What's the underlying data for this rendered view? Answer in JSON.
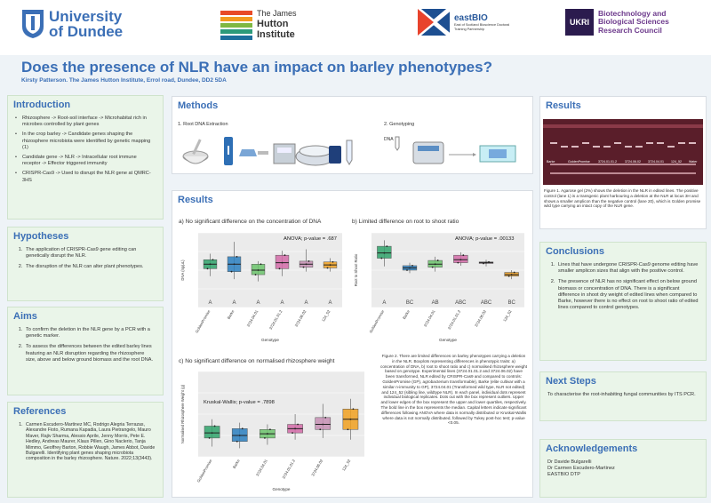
{
  "header": {
    "uod_logo": "University of Dundee",
    "uod_line1": "University",
    "uod_line2": "of Dundee",
    "hutton_line1": "The James",
    "hutton_line2": "Hutton",
    "hutton_line3": "Institute",
    "eastbio": "eastBIO",
    "eastbio_sub": "East of Scotland Bioscience Doctoral Training Partnership",
    "ukri": "UKRI",
    "bbsrc_line1": "Biotechnology and",
    "bbsrc_line2": "Biological Sciences",
    "bbsrc_line3": "Research Council"
  },
  "title": "Does the presence of NLR have an impact on barley phenotypes?",
  "subtitle": "Kirsty Patterson. The James Hutton Institute, Errol road, Dundee, DD2 5DA",
  "introduction": {
    "heading": "Introduction",
    "items": [
      "Rhizosphere -> Root-soil interface -> Microhabitat rich in microbes controlled by plant genes",
      "In the crop barley -> Candidate genes shaping the rhizosphere microbiota were identified by genetic mapping (1)",
      "Candidate gene -> NLR -> Intracellular root immune receptor -> Effector triggered immunity",
      "CRISPR-Cas9 -> Used to disrupt the NLR gene at QMRC-3HS"
    ]
  },
  "hypotheses": {
    "heading": "Hypotheses",
    "items": [
      "The application of CRISPR-Cas9 gene editing can genetically disrupt the NLR.",
      "The disruption of the NLR can alter plant phenotypes."
    ]
  },
  "aims": {
    "heading": "Aims",
    "items": [
      "To confirm the deletion in the NLR gene by a PCR with a genetic marker.",
      "To assess the differences between the edited barley lines featuring an NLR disruption regarding the rhizosphere size, above and below ground biomass and the root DNA."
    ]
  },
  "references": {
    "heading": "References",
    "items": [
      "Carmen Escudero-Martinez MC, Rodrigo Alegria Terrazas, Alexandre Fioto, Rumana Kapadia, Laura Pietrangelo, Mauro Maver, Rajiv Sharma, Alessio Aprile, Jenny Morris, Pete E. Hedley, Andreas Maurer, Klaus Pillen, Gino Naclerio, Tanja Mimmo, Geoffrey Barton, Robbie Waugh, James Abbot, Davide Bulgarelli. Identifying plant genes shaping microbiota composition in the barley rhizosphere. Nature. 2022;13(3443)."
    ]
  },
  "methods": {
    "heading": "Methods",
    "step1": "1.  Root DNA Extraction",
    "step2": "2.  Genotyping",
    "dna_label": "DNA"
  },
  "results_main": {
    "heading": "Results",
    "caption": "Figure 2. There are limited differences on barley phenotypes carrying a deletion in the NLR. Boxplots representing differences in phenotypic traits: a) concentration of DNA, b) root to shoot ratio and c) normalised rhizosphere weight based on genotype. Experimental lines (3724.01.01.2 and 3724.06.02) have been transformed, NLR edited by CRISPR-Cas9 and compared to controls: GoldenPromise (GP), agrobacterium transformable), Barke (elite cultivar with a similar n-immunity to GP), 3724.04.01 (Transformed wild type, NLR not edited) and 124_52 (sibling line, wildtype NLR). In each panel, individual dots represent individual biological replicates. Dots out with the box represent outliers. Upper and lower edges of the box represent the upper and lower quartiles, respectively. The bold line in the box represents the median. Capital letters indicate significant differences following ANOVA where data is normally distributed or Kruskal-Wallis where data is not normally distributed, followed by Tukey post-hoc test; p-value <0.05."
  },
  "results_side": {
    "heading": "Results",
    "gel_labels": [
      "Barke",
      "GoldenPromise",
      "3724.01.01.2",
      "3724.06.02",
      "3724.04.01",
      "124_52",
      "Water"
    ],
    "caption": "Figure 1. Agarose gel (2%) shows the deletion in the NLR in edited lines. The positive control (lane 1) is a transgenic plant harbouring a deletion at the NLR at locus 3H and shows a smaller amplicon than the negative control (lane 20), which is Golden promise wild type carrying an intact copy of the NLR gene."
  },
  "conclusions": {
    "heading": "Conclusions",
    "items": [
      "Lines that have undergone CRISPR-Cas9 genome editing have smaller amplicon sizes that align with the positive control.",
      "The presence of NLR has no significant effect on below ground biomass or concentration of DNA. There is a significant difference in shoot dry weight of edited lines when compared to Barke, however there is no effect on root to shoot ratio of edited lines compared to control genotypes."
    ]
  },
  "next_steps": {
    "heading": "Next Steps",
    "text": "To characterise the root-inhabiting fungal communities by ITS PCR."
  },
  "acknowledgements": {
    "heading": "Acknowledgements",
    "lines": [
      "Dr Davide Bulgarelli",
      "Dr Carmen Escudero-Martinez",
      "EASTBIO DTP"
    ]
  },
  "chart_data": [
    {
      "type": "box",
      "panel_label": "a) No significant difference on the concentration of DNA",
      "stat_label": "ANOVA; p-value = .687",
      "ylabel": "DNA (ng/μL)",
      "xlabel": "Genotype",
      "categories": [
        "GoldenPromise",
        "Barke",
        "3724.04.01",
        "3724.01.01.2",
        "3724.06.02",
        "124_52"
      ],
      "letters": [
        "A",
        "A",
        "A",
        "A",
        "A",
        "A"
      ],
      "colors": [
        "#2fa36b",
        "#2a7fc0",
        "#6cc46c",
        "#d36ba8",
        "#c58fb4",
        "#f0a020"
      ],
      "ylim": [
        0,
        100
      ],
      "boxes": [
        {
          "min": 42,
          "q1": 52,
          "median": 58,
          "q3": 64,
          "max": 72
        },
        {
          "min": 38,
          "q1": 48,
          "median": 58,
          "q3": 68,
          "max": 88
        },
        {
          "min": 35,
          "q1": 44,
          "median": 50,
          "q3": 58,
          "max": 62
        },
        {
          "min": 42,
          "q1": 52,
          "median": 60,
          "q3": 70,
          "max": 76
        },
        {
          "min": 48,
          "q1": 54,
          "median": 58,
          "q3": 62,
          "max": 78
        },
        {
          "min": 48,
          "q1": 53,
          "median": 57,
          "q3": 61,
          "max": 66
        }
      ]
    },
    {
      "type": "box",
      "panel_label": "b) Limited difference on root to shoot ratio",
      "stat_label": "ANOVA; p-value = .00133",
      "ylabel": "Root to Shoot Ratio",
      "xlabel": "Genotype",
      "categories": [
        "GoldenPromise",
        "Barke",
        "3724.04.01",
        "3724.01.01.2",
        "3724.06.02",
        "124_52"
      ],
      "letters": [
        "A",
        "BC",
        "AB",
        "ABC",
        "ABC",
        "BC"
      ],
      "colors": [
        "#2fa36b",
        "#2a7fc0",
        "#6cc46c",
        "#d36ba8",
        "#c58fb4",
        "#f0a020"
      ],
      "ylim": [
        0,
        1
      ],
      "boxes": [
        {
          "min": 0.55,
          "q1": 0.66,
          "median": 0.73,
          "q3": 0.82,
          "max": 0.9
        },
        {
          "min": 0.46,
          "q1": 0.5,
          "median": 0.53,
          "q3": 0.56,
          "max": 0.6
        },
        {
          "min": 0.48,
          "q1": 0.54,
          "median": 0.58,
          "q3": 0.63,
          "max": 0.68
        },
        {
          "min": 0.56,
          "q1": 0.6,
          "median": 0.64,
          "q3": 0.7,
          "max": 0.74
        },
        {
          "min": 0.55,
          "q1": 0.59,
          "median": 0.6,
          "q3": 0.61,
          "max": 0.64
        },
        {
          "min": 0.38,
          "q1": 0.42,
          "median": 0.44,
          "q3": 0.47,
          "max": 0.5
        }
      ]
    },
    {
      "type": "box",
      "panel_label": "c) No significant difference on normalised rhizosphere weight",
      "stat_label": "Kruskal-Wallis; p-value = .7898",
      "ylabel": "Normalised Rhizosphere Weight (g)",
      "xlabel": "Genotype",
      "categories": [
        "GoldenPromise",
        "Barke",
        "3724.04.01",
        "3724.01.01.2",
        "3724.06.02",
        "124_52"
      ],
      "colors": [
        "#2fa36b",
        "#2a7fc0",
        "#6cc46c",
        "#d36ba8",
        "#c58fb4",
        "#f0a020"
      ],
      "ylim": [
        0,
        1
      ],
      "boxes": [
        {
          "min": 0.12,
          "q1": 0.22,
          "median": 0.28,
          "q3": 0.36,
          "max": 0.44
        },
        {
          "min": 0.1,
          "q1": 0.18,
          "median": 0.25,
          "q3": 0.33,
          "max": 0.4
        },
        {
          "min": 0.14,
          "q1": 0.22,
          "median": 0.27,
          "q3": 0.32,
          "max": 0.38
        },
        {
          "min": 0.2,
          "q1": 0.28,
          "median": 0.33,
          "q3": 0.38,
          "max": 0.5
        },
        {
          "min": 0.22,
          "q1": 0.32,
          "median": 0.38,
          "q3": 0.46,
          "max": 0.62
        },
        {
          "min": 0.2,
          "q1": 0.32,
          "median": 0.44,
          "q3": 0.56,
          "max": 0.68
        }
      ]
    }
  ]
}
